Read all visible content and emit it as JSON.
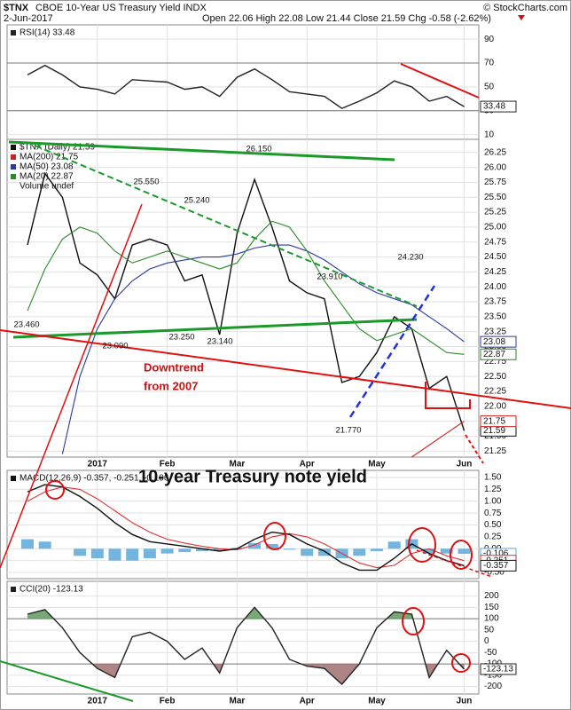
{
  "header": {
    "symbol": "$TNX",
    "name": "CBOE 10-Year US Treasury Yield INDX",
    "date": "2-Jun-2017",
    "quote": "Open 22.06 High 22.08 Low 21.44 Close 21.59 Chg -0.58 (-2.62%)",
    "credit": "© StockCharts.com",
    "overlay_title": "10-year Treasury note yield"
  },
  "chart_data": [
    {
      "type": "line",
      "ylim": [
        6,
        102
      ],
      "yticks": [
        90,
        70,
        50,
        30,
        10
      ],
      "grid": true,
      "hlines": [
        70,
        30
      ],
      "fill_colors": [
        "#5f9a5f",
        "#a07070"
      ],
      "series": [
        {
          "name": "RSI(14) 33.48",
          "color": "#222222",
          "values": [
            60,
            68,
            60,
            50,
            48,
            44,
            56,
            55,
            54,
            48,
            50,
            42,
            58,
            65,
            56,
            46,
            44,
            42,
            32,
            38,
            45,
            55,
            50,
            38,
            42,
            33.48
          ]
        }
      ]
    },
    {
      "type": "line",
      "ylim": [
        21.15,
        26.47
      ],
      "grid": true,
      "categories": [
        null,
        null,
        null,
        null,
        "2017",
        null,
        null,
        null,
        "Feb",
        null,
        null,
        null,
        "Mar",
        null,
        null,
        null,
        "Apr",
        null,
        null,
        null,
        "May",
        null,
        null,
        null,
        null,
        "Jun"
      ],
      "yticks": [
        26.25,
        {
          "value": 26,
          "label": "26.00"
        },
        25.75,
        {
          "value": 25.5,
          "label": "25.50"
        },
        25.25,
        {
          "value": 25,
          "label": "25.00"
        },
        24.75,
        {
          "value": 24.5,
          "label": "24.50"
        },
        24.25,
        {
          "value": 24,
          "label": "24.00"
        },
        23.75,
        {
          "value": 23.5,
          "label": "23.50"
        },
        23.25,
        {
          "value": 23,
          "label": "23.00"
        },
        22.75,
        {
          "value": 22.5,
          "label": "22.50"
        },
        22.25,
        {
          "value": 22,
          "label": "22.00"
        },
        21.75,
        {
          "value": 21.5,
          "label": "21.50"
        },
        21.25
      ],
      "series": [
        {
          "name": "$TNX (Daily) 21.59",
          "color": "#111111",
          "values": [
            24.7,
            25.9,
            25.5,
            24.4,
            24.2,
            23.8,
            24.7,
            24.8,
            24.7,
            24.1,
            24.2,
            23.2,
            24.9,
            25.8,
            25.0,
            24.1,
            23.9,
            23.8,
            22.4,
            22.5,
            22.9,
            23.5,
            23.3,
            22.3,
            22.5,
            21.59
          ]
        },
        {
          "name": "MA(200) 21.75",
          "color": "#cc2222",
          "values": [
            null,
            null,
            null,
            null,
            null,
            null,
            null,
            null,
            null,
            null,
            null,
            null,
            null,
            null,
            null,
            null,
            null,
            null,
            null,
            null,
            null,
            null,
            21.15,
            21.35,
            21.55,
            21.75
          ]
        },
        {
          "name": "MA(50) 23.08",
          "color": "#2a3aa0",
          "values": [
            null,
            null,
            21.2,
            22.5,
            23.3,
            23.8,
            24.1,
            24.3,
            24.4,
            24.45,
            24.5,
            24.5,
            24.55,
            24.65,
            24.7,
            24.7,
            24.6,
            24.45,
            24.25,
            24.05,
            23.9,
            23.8,
            23.7,
            23.5,
            23.3,
            23.08
          ]
        },
        {
          "name": "MA(20) 22.87",
          "color": "#2a8a2a",
          "values": [
            23.6,
            24.3,
            24.8,
            25.0,
            24.9,
            24.6,
            24.4,
            24.5,
            24.6,
            24.5,
            24.4,
            24.3,
            24.4,
            24.8,
            25.1,
            25.0,
            24.6,
            24.1,
            23.7,
            23.3,
            23.1,
            23.2,
            23.3,
            23.1,
            22.9,
            22.87
          ]
        }
      ],
      "legend_extra": "Volume undef",
      "annotations": [
        "26.150",
        "25.550",
        "25.240",
        "23.910",
        "24.230",
        "23.460",
        "23.090",
        "23.250",
        "23.140",
        "21.770",
        "Downtrend",
        "from 2007"
      ]
    },
    {
      "type": "line",
      "ylim": [
        -0.63,
        1.65
      ],
      "grid": true,
      "yticks": [
        {
          "value": 1.5,
          "label": "1.50"
        },
        1.25,
        {
          "value": 1,
          "label": "1.00"
        },
        0.75,
        {
          "value": 0.5,
          "label": "0.50"
        },
        0.25,
        {
          "value": 0,
          "label": "0.00"
        },
        -0.25,
        {
          "value": -0.5,
          "label": "-0.50"
        }
      ],
      "series": [
        {
          "type": "bar",
          "color": "#5aa8d8",
          "values": [
            0.2,
            0.15,
            0.0,
            -0.15,
            -0.2,
            -0.25,
            -0.25,
            -0.2,
            -0.1,
            -0.07,
            -0.05,
            -0.05,
            0.02,
            0.12,
            0.1,
            -0.02,
            -0.15,
            -0.15,
            -0.2,
            -0.15,
            -0.05,
            0.15,
            0.2,
            -0.1,
            -0.1,
            -0.106
          ]
        },
        {
          "color": "#dd3333",
          "values": [
            1.0,
            1.2,
            1.3,
            1.25,
            1.05,
            0.8,
            0.55,
            0.35,
            0.2,
            0.12,
            0.05,
            0.0,
            -0.02,
            0.08,
            0.25,
            0.32,
            0.25,
            0.1,
            -0.1,
            -0.3,
            -0.4,
            -0.35,
            -0.1,
            0.0,
            -0.15,
            -0.251
          ]
        },
        {
          "name": "MACD(12,26,9) -0.357, -0.251, -0.106",
          "color": "#111111",
          "values": [
            1.2,
            1.35,
            1.3,
            1.1,
            0.85,
            0.55,
            0.3,
            0.15,
            0.1,
            0.05,
            0.0,
            -0.05,
            0.0,
            0.2,
            0.35,
            0.3,
            0.1,
            -0.05,
            -0.3,
            -0.45,
            -0.45,
            -0.2,
            0.1,
            -0.1,
            -0.25,
            -0.357
          ]
        }
      ]
    },
    {
      "type": "line",
      "ylim": [
        -233,
        265
      ],
      "grid": true,
      "hlines": [
        100,
        -100
      ],
      "fill_colors": [
        "#5f9a5f",
        "#a07070"
      ],
      "categories": [
        null,
        null,
        null,
        null,
        "2017",
        null,
        null,
        null,
        "Feb",
        null,
        null,
        null,
        "Mar",
        null,
        null,
        null,
        "Apr",
        null,
        null,
        null,
        "May",
        null,
        null,
        null,
        null,
        "Jun"
      ],
      "yticks": [
        200,
        150,
        100,
        50,
        0,
        -50,
        -100,
        -150,
        -200
      ],
      "series": [
        {
          "name": "CCI(20) -123.13",
          "color": "#222222",
          "values": [
            120,
            140,
            60,
            -50,
            -120,
            -160,
            20,
            40,
            0,
            -80,
            -30,
            -140,
            60,
            150,
            60,
            -80,
            -110,
            -120,
            -190,
            -100,
            60,
            130,
            120,
            -160,
            -40,
            -123.13
          ]
        }
      ]
    }
  ]
}
